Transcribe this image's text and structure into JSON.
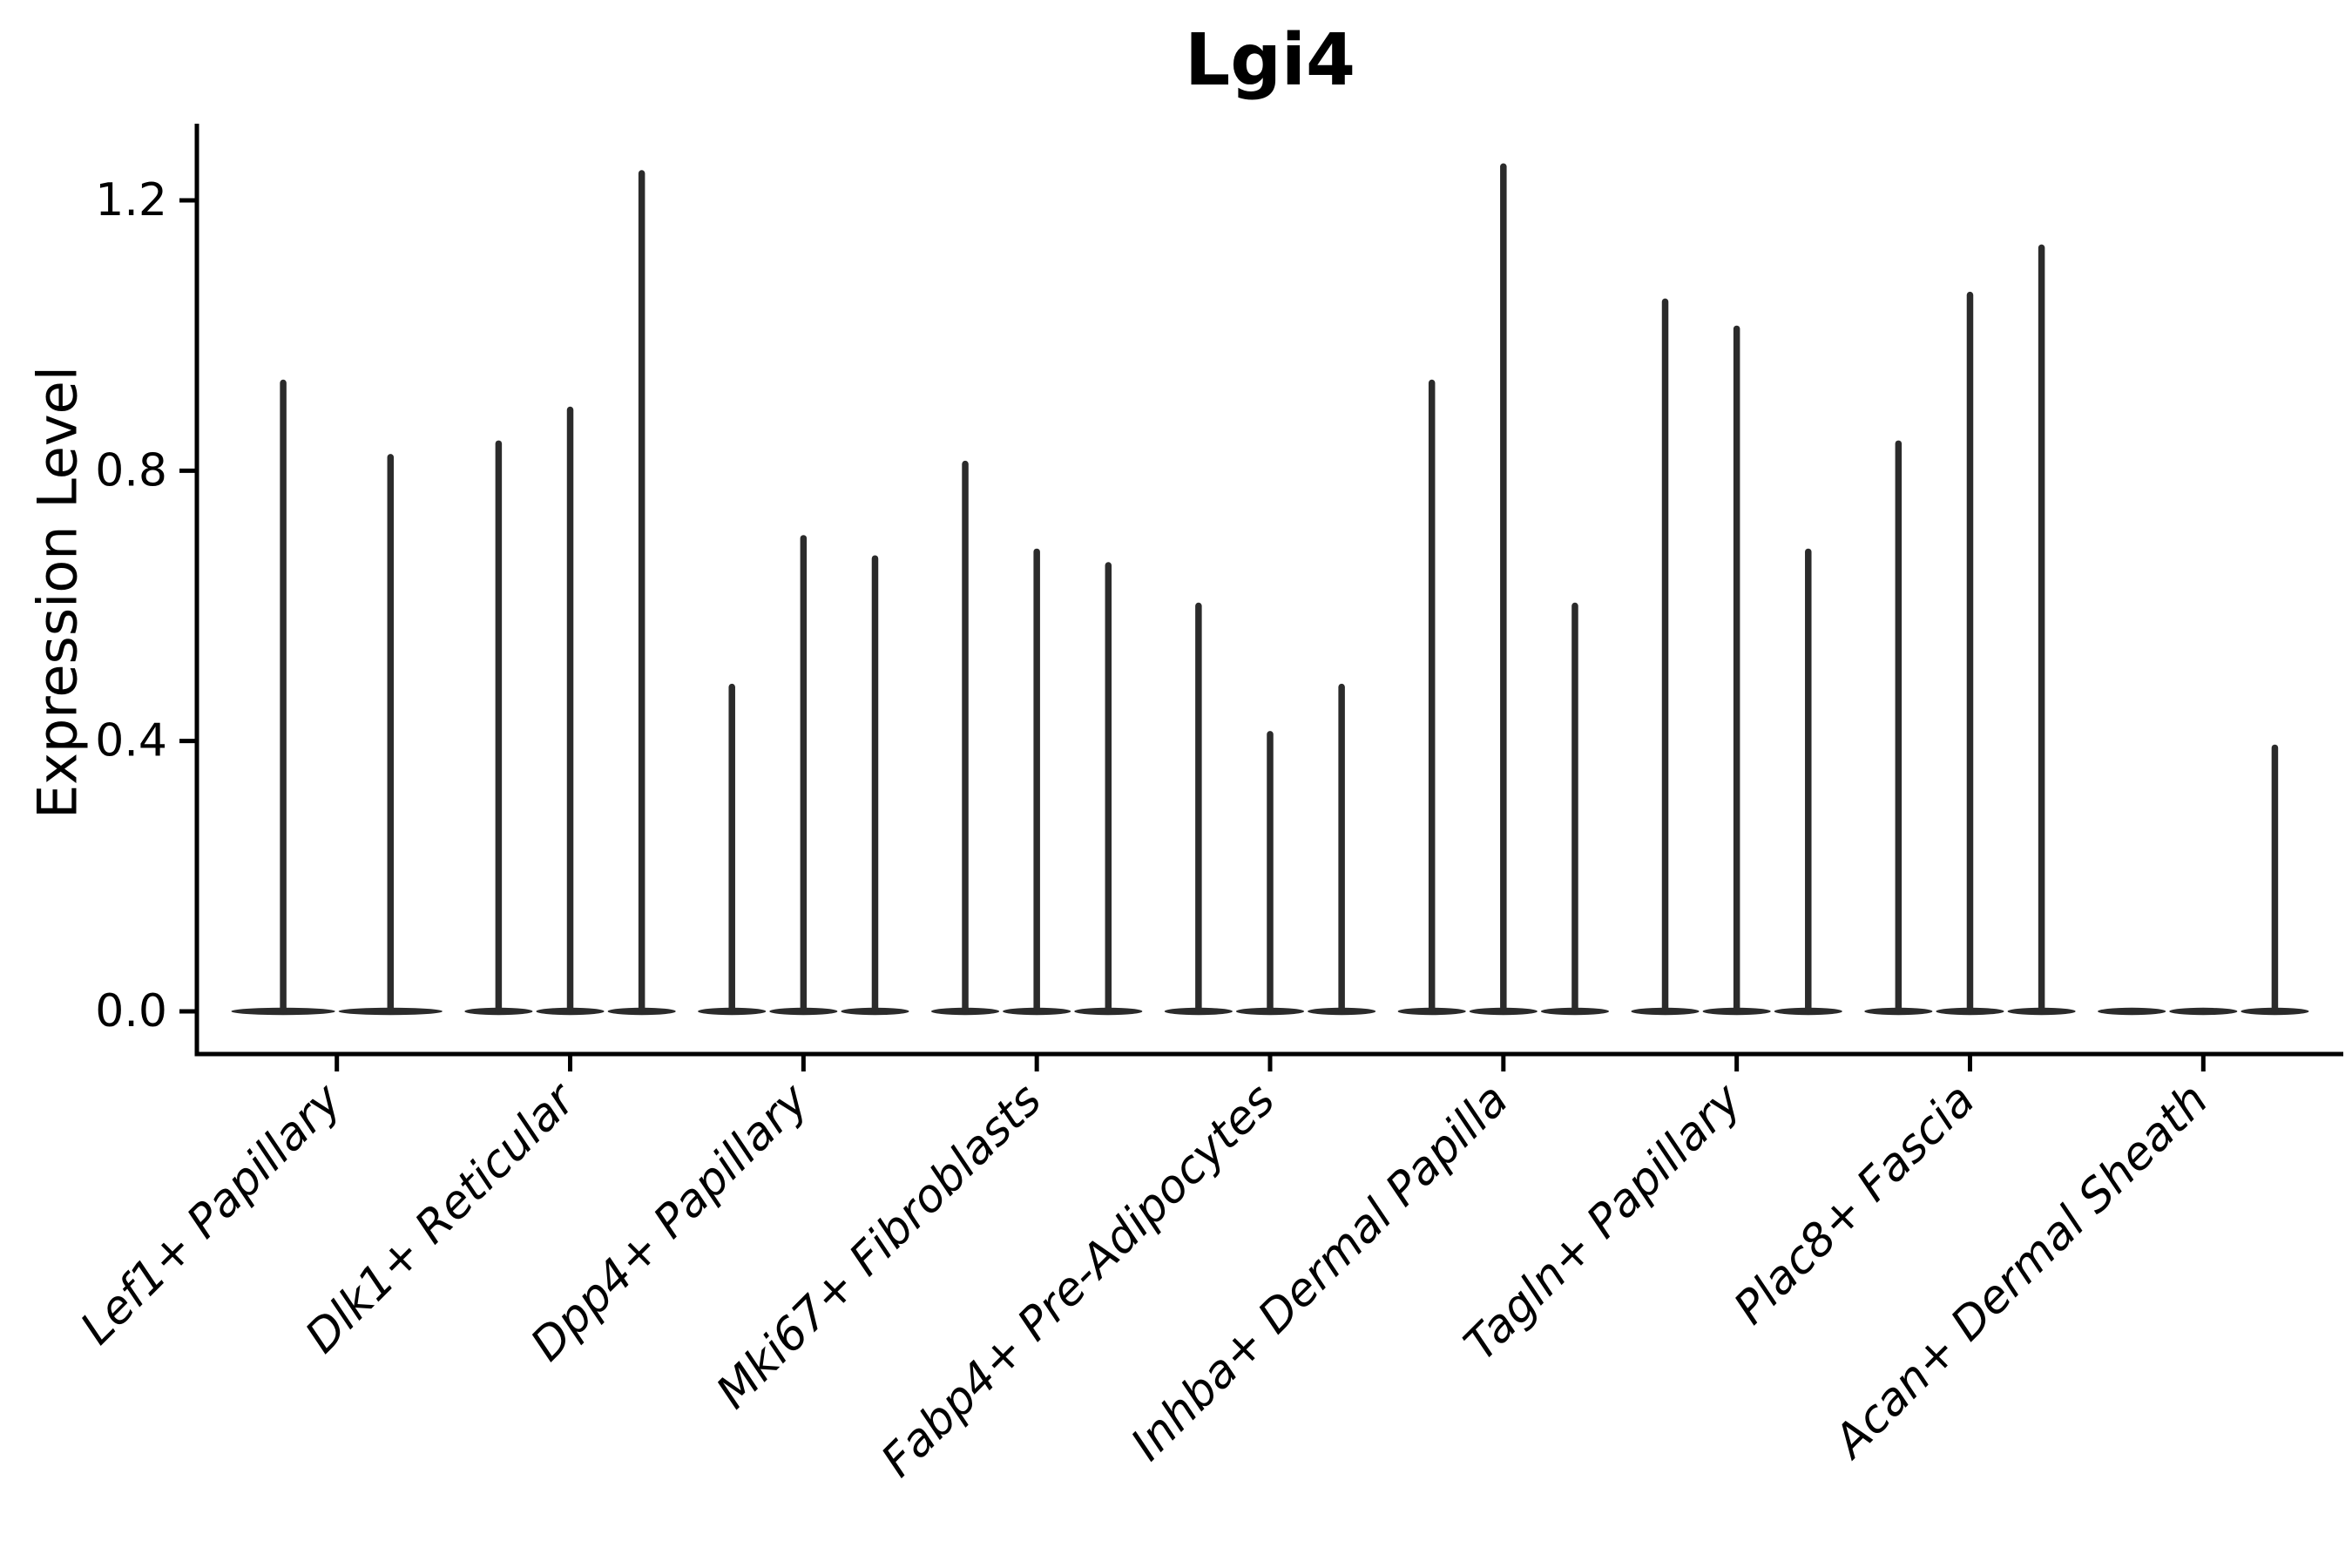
{
  "figure": {
    "background_color": "#ffffff",
    "axis_color": "#000000",
    "text_color": "#000000"
  },
  "chart_data": {
    "type": "violin",
    "title": "Lgi4",
    "xlabel": "",
    "ylabel": "Expression Level",
    "ylim": [
      -0.06,
      1.31
    ],
    "yticks": [
      0.0,
      0.4,
      0.8,
      1.2
    ],
    "ytick_labels": [
      "0.0",
      "0.4",
      "0.8",
      "1.2"
    ],
    "grid": false,
    "legend_position": "none",
    "violin_color": "#2b2b2b",
    "violin_style": "density concentrated at 0 (flat lens at baseline) with thin vertical tail up to the max expression value",
    "categories": [
      "Lef1+ Papillary",
      "Dlk1+ Reticular",
      "Dpp4+ Papillary",
      "Mki67+ Fibroblasts",
      "Fabp4+ Pre-Adipocytes",
      "Inhba+ Dermal Papilla",
      "Tagln+ Papillary",
      "Plac8+ Fascia",
      "Acan+ Dermal Sheath"
    ],
    "groups": [
      {
        "category": "Lef1+ Papillary",
        "max_values": [
          0.93,
          0.82
        ]
      },
      {
        "category": "Dlk1+ Reticular",
        "max_values": [
          0.84,
          0.89,
          1.24
        ]
      },
      {
        "category": "Dpp4+ Papillary",
        "max_values": [
          0.48,
          0.7,
          0.67
        ]
      },
      {
        "category": "Mki67+ Fibroblasts",
        "max_values": [
          0.81,
          0.68,
          0.66
        ]
      },
      {
        "category": "Fabp4+ Pre-Adipocytes",
        "max_values": [
          0.6,
          0.41,
          0.48
        ]
      },
      {
        "category": "Inhba+ Dermal Papilla",
        "max_values": [
          0.93,
          1.25,
          0.6
        ]
      },
      {
        "category": "Tagln+ Papillary",
        "max_values": [
          1.05,
          1.01,
          0.68
        ]
      },
      {
        "category": "Plac8+ Fascia",
        "max_values": [
          0.84,
          1.06,
          1.13
        ]
      },
      {
        "category": "Acan+ Dermal Sheath",
        "max_values": [
          0.0,
          0.0,
          0.39
        ]
      }
    ]
  }
}
